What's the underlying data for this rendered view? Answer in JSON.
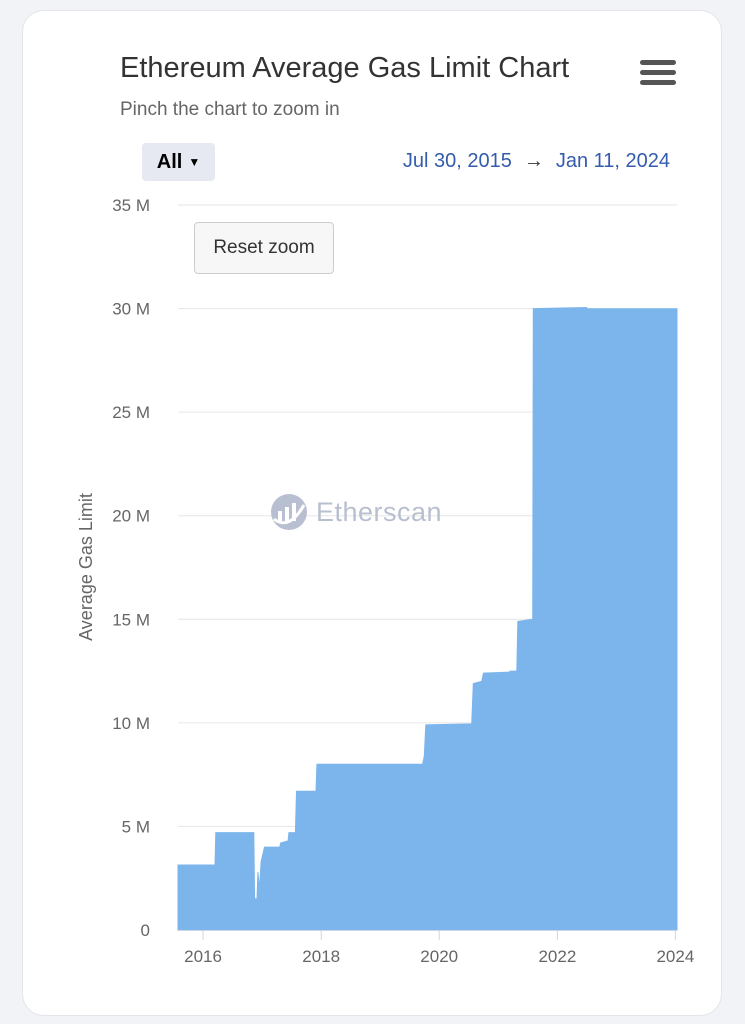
{
  "header": {
    "title": "Ethereum Average Gas Limit Chart",
    "subtitle": "Pinch the chart to zoom in",
    "menu_icon": "hamburger-icon"
  },
  "controls": {
    "range_label": "All",
    "date_from": "Jul 30, 2015",
    "date_arrow": "→",
    "date_to": "Jan 11, 2024",
    "reset_zoom_label": "Reset zoom"
  },
  "watermark": {
    "text": "Etherscan",
    "icon": "etherscan-logo-icon"
  },
  "colors": {
    "fill": "#7cb5ec",
    "grid": "#e6e6e6",
    "text": "#666666"
  },
  "chart_data": {
    "type": "area",
    "title": "Ethereum Average Gas Limit Chart",
    "ylabel": "Average Gas Limit",
    "xlabel": "",
    "ylim": [
      0,
      35000000
    ],
    "xlim": [
      "2015-07-30",
      "2024-01-11"
    ],
    "y_ticks": [
      0,
      5000000,
      10000000,
      15000000,
      20000000,
      25000000,
      30000000,
      35000000
    ],
    "y_tick_labels": [
      "0",
      "5 M",
      "10 M",
      "15 M",
      "20 M",
      "25 M",
      "30 M",
      "35 M"
    ],
    "x_ticks": [
      "2016-01-01",
      "2018-01-01",
      "2020-01-01",
      "2022-01-01",
      "2024-01-01"
    ],
    "x_tick_labels": [
      "2016",
      "2018",
      "2020",
      "2022",
      "2024"
    ],
    "grid": true,
    "legend": "none",
    "series": [
      {
        "points": [
          [
            "2015-07-30",
            3140000
          ],
          [
            "2016-03-15",
            3140000
          ],
          [
            "2016-03-20",
            4700000
          ],
          [
            "2016-11-10",
            4700000
          ],
          [
            "2016-11-15",
            1500000
          ],
          [
            "2016-11-30",
            1500000
          ],
          [
            "2016-12-05",
            2800000
          ],
          [
            "2016-12-15",
            2000000
          ],
          [
            "2016-12-25",
            3300000
          ],
          [
            "2017-01-15",
            4000000
          ],
          [
            "2017-04-20",
            4000000
          ],
          [
            "2017-04-25",
            4200000
          ],
          [
            "2017-06-10",
            4300000
          ],
          [
            "2017-06-15",
            4700000
          ],
          [
            "2017-07-25",
            4700000
          ],
          [
            "2017-08-01",
            6700000
          ],
          [
            "2017-11-30",
            6700000
          ],
          [
            "2017-12-05",
            8000000
          ],
          [
            "2019-09-20",
            8000000
          ],
          [
            "2019-10-01",
            8400000
          ],
          [
            "2019-10-10",
            9900000
          ],
          [
            "2020-07-20",
            9950000
          ],
          [
            "2020-07-30",
            11900000
          ],
          [
            "2020-09-20",
            12000000
          ],
          [
            "2020-10-01",
            12400000
          ],
          [
            "2021-03-10",
            12450000
          ],
          [
            "2021-03-15",
            12500000
          ],
          [
            "2021-04-25",
            12500000
          ],
          [
            "2021-05-01",
            14900000
          ],
          [
            "2021-08-01",
            15000000
          ],
          [
            "2021-08-05",
            30000000
          ],
          [
            "2022-07-01",
            30050000
          ],
          [
            "2022-07-05",
            29990000
          ],
          [
            "2024-01-11",
            29990000
          ]
        ]
      }
    ]
  }
}
